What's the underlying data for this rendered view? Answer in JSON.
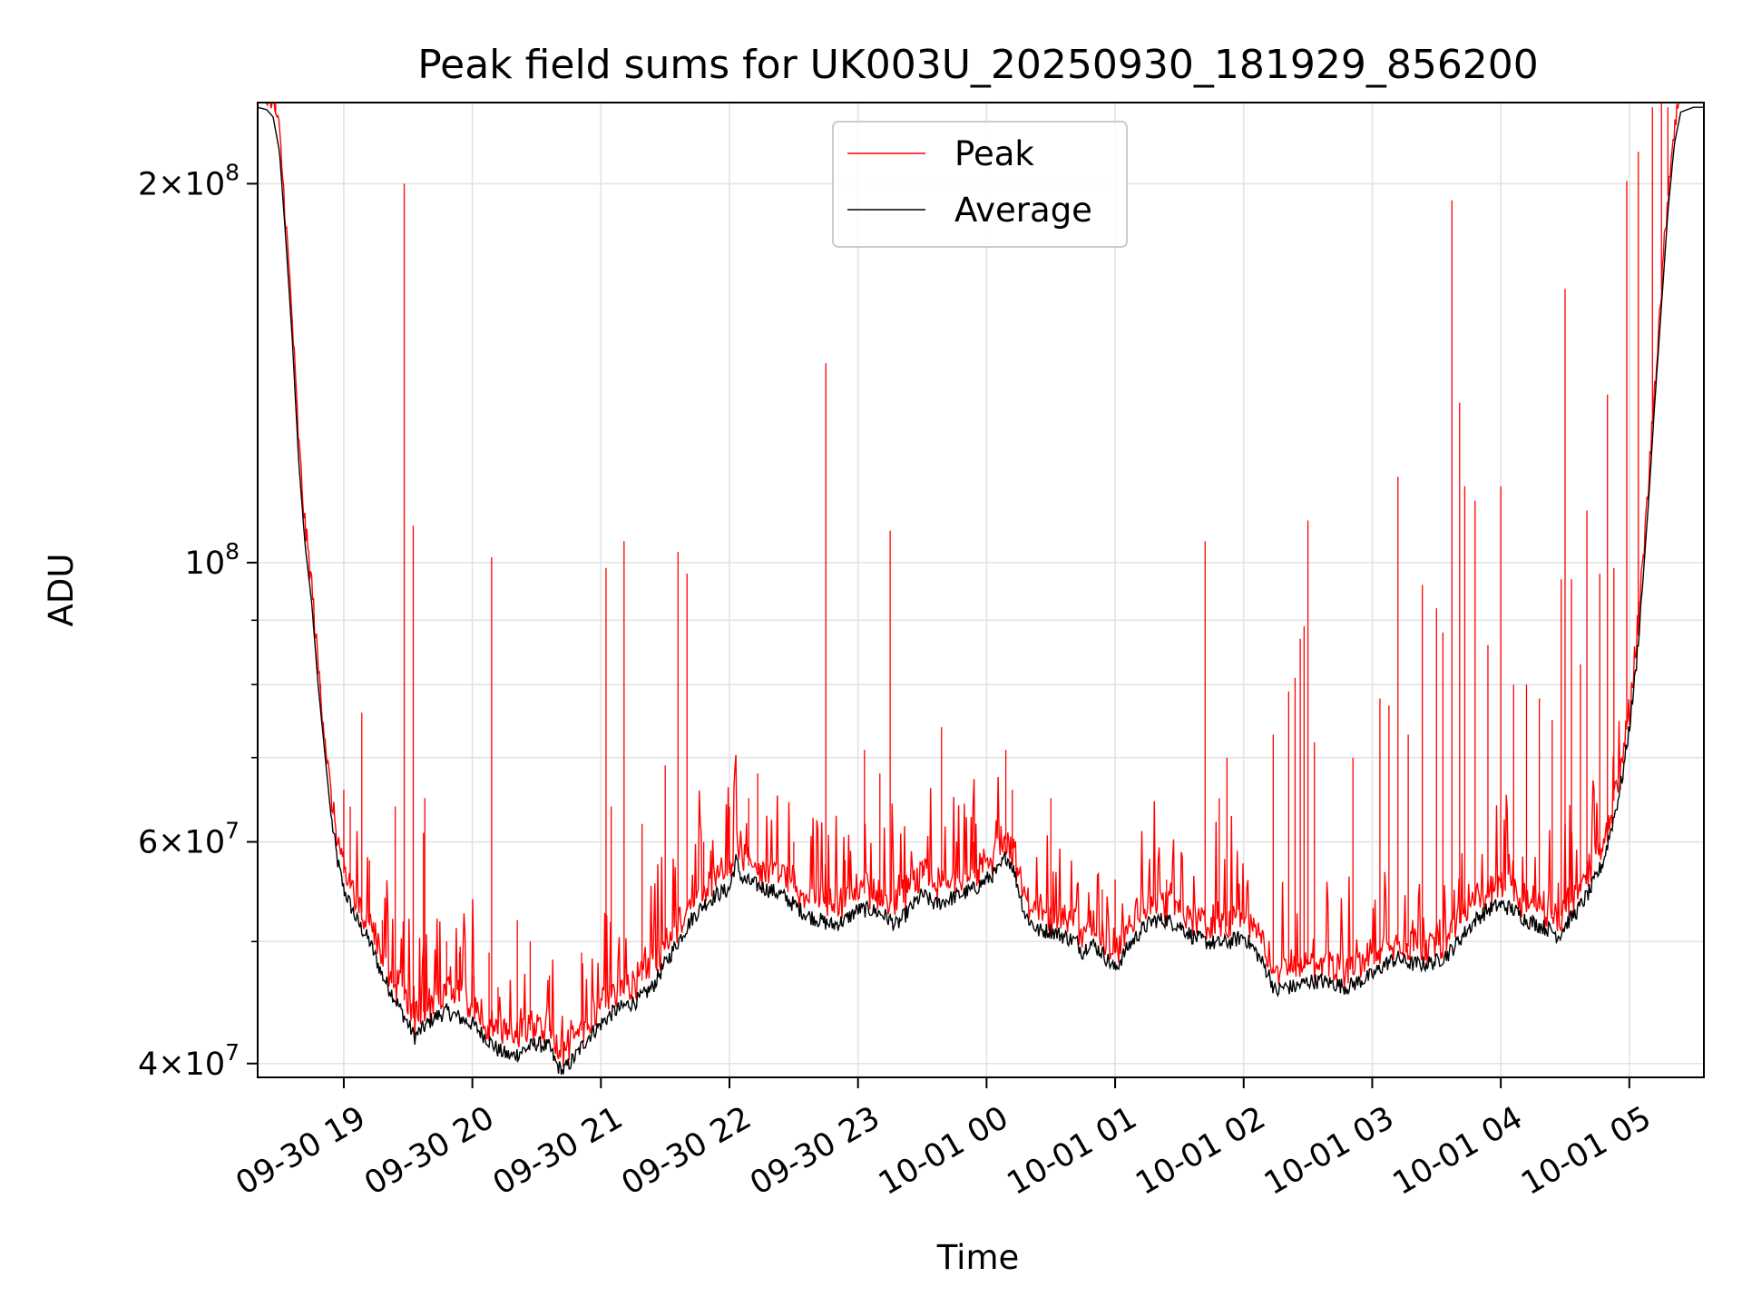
{
  "chart_data": {
    "type": "line",
    "title": "Peak field sums for UK003U_20250930_181929_856200",
    "xlabel": "Time",
    "ylabel": "ADU",
    "yscale": "log",
    "ylim": [
      39000000,
      232000000
    ],
    "xlim_hours": [
      -0.67,
      10.58
    ],
    "x_start_label": "2025-09-30 18:19:29",
    "grid": true,
    "legend_position": "upper center",
    "x_ticks": [
      {
        "hour": 0,
        "label": "09-30 19"
      },
      {
        "hour": 1,
        "label": "09-30 20"
      },
      {
        "hour": 2,
        "label": "09-30 21"
      },
      {
        "hour": 3,
        "label": "09-30 22"
      },
      {
        "hour": 4,
        "label": "09-30 23"
      },
      {
        "hour": 5,
        "label": "10-01 00"
      },
      {
        "hour": 6,
        "label": "10-01 01"
      },
      {
        "hour": 7,
        "label": "10-01 02"
      },
      {
        "hour": 8,
        "label": "10-01 03"
      },
      {
        "hour": 9,
        "label": "10-01 04"
      },
      {
        "hour": 10,
        "label": "10-01 05"
      }
    ],
    "y_ticks_major": [
      {
        "value": 40000000,
        "mant": "4",
        "exp": "7"
      },
      {
        "value": 60000000,
        "mant": "6",
        "exp": "7"
      },
      {
        "value": 100000000,
        "mant": "",
        "exp": "8"
      },
      {
        "value": 200000000,
        "mant": "2",
        "exp": "8"
      }
    ],
    "y_ticks_minor": [
      50000000,
      70000000,
      80000000,
      90000000
    ],
    "series": [
      {
        "name": "Peak",
        "color": "#ff0000",
        "spikes": [
          [
            -0.6,
            233000000
          ],
          [
            -0.53,
            234000000
          ],
          [
            -0.27,
            100000000
          ],
          [
            -0.18,
            80000000
          ],
          [
            0.0,
            66000000
          ],
          [
            0.05,
            64000000
          ],
          [
            0.14,
            76000000
          ],
          [
            0.2,
            58000000
          ],
          [
            0.3,
            52000000
          ],
          [
            0.4,
            64000000
          ],
          [
            0.47,
            200000000
          ],
          [
            0.54,
            107000000
          ],
          [
            0.62,
            61000000
          ],
          [
            0.63,
            65000000
          ],
          [
            0.8,
            50000000
          ],
          [
            0.9,
            49000000
          ],
          [
            1.0,
            47000000
          ],
          [
            1.13,
            49000000
          ],
          [
            1.15,
            101000000
          ],
          [
            1.2,
            46000000
          ],
          [
            1.35,
            52000000
          ],
          [
            1.45,
            50000000
          ],
          [
            1.6,
            47000000
          ],
          [
            1.85,
            49000000
          ],
          [
            2.04,
            99000000
          ],
          [
            2.08,
            64000000
          ],
          [
            2.18,
            104000000
          ],
          [
            2.32,
            62000000
          ],
          [
            2.5,
            69000000
          ],
          [
            2.6,
            102000000
          ],
          [
            2.67,
            98000000
          ],
          [
            2.8,
            60000000
          ],
          [
            3.0,
            64000000
          ],
          [
            3.15,
            65000000
          ],
          [
            3.22,
            68000000
          ],
          [
            3.5,
            60000000
          ],
          [
            3.75,
            144000000
          ],
          [
            3.9,
            58000000
          ],
          [
            4.05,
            71000000
          ],
          [
            4.17,
            68000000
          ],
          [
            4.25,
            106000000
          ],
          [
            4.5,
            58000000
          ],
          [
            4.65,
            74000000
          ],
          [
            4.9,
            60000000
          ],
          [
            5.15,
            71000000
          ],
          [
            5.2,
            66000000
          ],
          [
            5.5,
            65000000
          ],
          [
            6.0,
            56000000
          ],
          [
            5.9,
            55000000
          ],
          [
            6.4,
            56000000
          ],
          [
            6.7,
            104000000
          ],
          [
            6.81,
            65000000
          ],
          [
            6.87,
            70000000
          ],
          [
            7.23,
            73000000
          ],
          [
            7.35,
            79000000
          ],
          [
            7.4,
            81000000
          ],
          [
            7.44,
            87000000
          ],
          [
            7.47,
            89000000
          ],
          [
            7.5,
            108000000
          ],
          [
            7.55,
            72000000
          ],
          [
            7.85,
            70000000
          ],
          [
            8.06,
            78000000
          ],
          [
            8.13,
            77000000
          ],
          [
            8.2,
            117000000
          ],
          [
            8.28,
            73000000
          ],
          [
            8.39,
            96000000
          ],
          [
            8.5,
            92000000
          ],
          [
            8.55,
            88000000
          ],
          [
            8.62,
            194000000
          ],
          [
            8.68,
            134000000
          ],
          [
            8.72,
            115000000
          ],
          [
            8.8,
            112000000
          ],
          [
            8.9,
            86000000
          ],
          [
            9.0,
            115000000
          ],
          [
            9.1,
            80000000
          ],
          [
            9.2,
            80000000
          ],
          [
            9.3,
            78000000
          ],
          [
            9.4,
            75000000
          ],
          [
            9.47,
            97000000
          ],
          [
            9.5,
            165000000
          ],
          [
            9.55,
            97000000
          ],
          [
            9.62,
            83000000
          ],
          [
            9.67,
            110000000
          ],
          [
            9.77,
            98000000
          ],
          [
            9.83,
            136000000
          ],
          [
            9.88,
            99000000
          ],
          [
            9.93,
            66000000
          ],
          [
            9.98,
            201000000
          ],
          [
            10.07,
            212000000
          ],
          [
            10.18,
            230000000
          ],
          [
            10.25,
            234000000
          ],
          [
            10.3,
            230000000
          ]
        ]
      },
      {
        "name": "Average",
        "color": "#000000",
        "points": [
          [
            -0.67,
            230000000
          ],
          [
            -0.6,
            229000000
          ],
          [
            -0.55,
            226000000
          ],
          [
            -0.5,
            212000000
          ],
          [
            -0.45,
            180000000
          ],
          [
            -0.4,
            150000000
          ],
          [
            -0.35,
            120000000
          ],
          [
            -0.3,
            103000000
          ],
          [
            -0.25,
            93000000
          ],
          [
            -0.2,
            80000000
          ],
          [
            -0.15,
            71000000
          ],
          [
            -0.1,
            63000000
          ],
          [
            -0.05,
            58000000
          ],
          [
            0.0,
            55000000
          ],
          [
            0.1,
            52000000
          ],
          [
            0.2,
            50000000
          ],
          [
            0.3,
            47000000
          ],
          [
            0.4,
            45000000
          ],
          [
            0.5,
            43000000
          ],
          [
            0.55,
            42000000
          ],
          [
            0.6,
            42500000
          ],
          [
            0.7,
            43500000
          ],
          [
            0.8,
            44000000
          ],
          [
            0.9,
            43500000
          ],
          [
            1.0,
            43000000
          ],
          [
            1.1,
            42000000
          ],
          [
            1.2,
            41000000
          ],
          [
            1.3,
            40500000
          ],
          [
            1.4,
            41000000
          ],
          [
            1.5,
            41500000
          ],
          [
            1.6,
            41200000
          ],
          [
            1.65,
            40000000
          ],
          [
            1.7,
            39400000
          ],
          [
            1.8,
            40500000
          ],
          [
            1.9,
            42000000
          ],
          [
            2.0,
            43000000
          ],
          [
            2.1,
            44000000
          ],
          [
            2.2,
            44500000
          ],
          [
            2.3,
            45000000
          ],
          [
            2.4,
            46000000
          ],
          [
            2.5,
            48000000
          ],
          [
            2.6,
            50000000
          ],
          [
            2.7,
            52000000
          ],
          [
            2.8,
            53500000
          ],
          [
            2.9,
            54500000
          ],
          [
            3.0,
            55000000
          ],
          [
            3.05,
            58000000
          ],
          [
            3.1,
            56000000
          ],
          [
            3.2,
            55500000
          ],
          [
            3.3,
            55000000
          ],
          [
            3.4,
            54500000
          ],
          [
            3.5,
            53500000
          ],
          [
            3.6,
            52500000
          ],
          [
            3.7,
            52000000
          ],
          [
            3.8,
            51500000
          ],
          [
            3.9,
            52000000
          ],
          [
            4.0,
            53000000
          ],
          [
            4.1,
            53000000
          ],
          [
            4.2,
            52500000
          ],
          [
            4.3,
            51500000
          ],
          [
            4.4,
            53000000
          ],
          [
            4.5,
            54500000
          ],
          [
            4.6,
            53500000
          ],
          [
            4.7,
            54000000
          ],
          [
            4.8,
            54500000
          ],
          [
            4.9,
            55000000
          ],
          [
            5.0,
            56000000
          ],
          [
            5.1,
            57000000
          ],
          [
            5.15,
            58500000
          ],
          [
            5.2,
            57500000
          ],
          [
            5.25,
            55000000
          ],
          [
            5.3,
            52500000
          ],
          [
            5.4,
            51000000
          ],
          [
            5.5,
            51000000
          ],
          [
            5.6,
            50500000
          ],
          [
            5.7,
            50000000
          ],
          [
            5.75,
            49000000
          ],
          [
            5.8,
            50000000
          ],
          [
            5.9,
            49000000
          ],
          [
            6.0,
            47500000
          ],
          [
            6.05,
            48500000
          ],
          [
            6.1,
            49500000
          ],
          [
            6.2,
            51000000
          ],
          [
            6.3,
            52000000
          ],
          [
            6.4,
            52000000
          ],
          [
            6.5,
            51500000
          ],
          [
            6.6,
            50500000
          ],
          [
            6.7,
            50000000
          ],
          [
            6.8,
            49800000
          ],
          [
            6.9,
            50000000
          ],
          [
            7.0,
            50500000
          ],
          [
            7.1,
            49000000
          ],
          [
            7.2,
            47000000
          ],
          [
            7.25,
            45500000
          ],
          [
            7.3,
            46000000
          ],
          [
            7.4,
            46000000
          ],
          [
            7.5,
            46500000
          ],
          [
            7.6,
            46500000
          ],
          [
            7.7,
            46300000
          ],
          [
            7.8,
            46000000
          ],
          [
            7.9,
            46500000
          ],
          [
            8.0,
            47000000
          ],
          [
            8.1,
            48000000
          ],
          [
            8.2,
            48500000
          ],
          [
            8.3,
            48000000
          ],
          [
            8.4,
            48000000
          ],
          [
            8.5,
            48200000
          ],
          [
            8.6,
            49000000
          ],
          [
            8.7,
            50500000
          ],
          [
            8.8,
            52000000
          ],
          [
            8.9,
            53000000
          ],
          [
            9.0,
            53500000
          ],
          [
            9.1,
            53000000
          ],
          [
            9.2,
            52000000
          ],
          [
            9.3,
            51500000
          ],
          [
            9.4,
            51000000
          ],
          [
            9.45,
            50500000
          ],
          [
            9.5,
            51500000
          ],
          [
            9.6,
            53000000
          ],
          [
            9.7,
            55000000
          ],
          [
            9.8,
            58000000
          ],
          [
            9.85,
            61000000
          ],
          [
            9.9,
            64000000
          ],
          [
            9.95,
            68000000
          ],
          [
            10.0,
            74000000
          ],
          [
            10.05,
            82000000
          ],
          [
            10.1,
            95000000
          ],
          [
            10.15,
            112000000
          ],
          [
            10.2,
            135000000
          ],
          [
            10.25,
            160000000
          ],
          [
            10.3,
            190000000
          ],
          [
            10.35,
            215000000
          ],
          [
            10.4,
            228000000
          ],
          [
            10.5,
            230000000
          ],
          [
            10.58,
            230000000
          ]
        ]
      }
    ]
  }
}
